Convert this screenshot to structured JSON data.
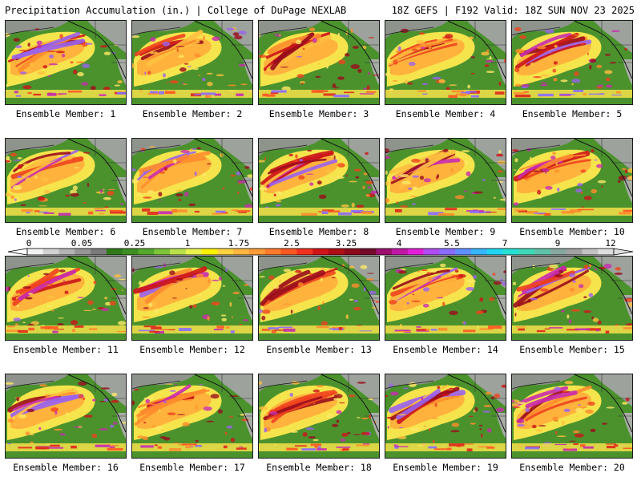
{
  "header": {
    "left": "Precipitation Accumulation (in.) | College of DuPage NEXLAB",
    "right": "18Z GEFS | F192 Valid: 18Z SUN NOV 23 2025"
  },
  "legend": {
    "labels": [
      "0",
      "0.05",
      "0.25",
      "1",
      "1.75",
      "2.5",
      "3.25",
      "4",
      "5.5",
      "7",
      "9",
      "12"
    ],
    "colors": [
      "#f2f2f2",
      "#d2d2d2",
      "#b4b4b4",
      "#969696",
      "#7a7a7a",
      "#2f7b1a",
      "#3e8f22",
      "#55a82c",
      "#7ec43a",
      "#b9e04c",
      "#eaf34d",
      "#fff200",
      "#ffd23f",
      "#ffb640",
      "#ff9b36",
      "#ff7a2a",
      "#ff5722",
      "#f2301e",
      "#d21418",
      "#b00c16",
      "#8c0a1a",
      "#730a2a",
      "#9c0f6e",
      "#c016a6",
      "#e21fd8",
      "#b24cf4",
      "#8a6cff",
      "#5f90ff",
      "#35b6ff",
      "#1fd6f2",
      "#26e0d2",
      "#3fd9b8",
      "#5fc3aa",
      "#86a8a0",
      "#a2a2a2",
      "#c2c2c2",
      "#dedede"
    ]
  },
  "ensemble": {
    "caption_prefix": "Ensemble Member:",
    "members": [
      {
        "number": "1"
      },
      {
        "number": "2"
      },
      {
        "number": "3"
      },
      {
        "number": "4"
      },
      {
        "number": "5"
      },
      {
        "number": "6"
      },
      {
        "number": "7"
      },
      {
        "number": "8"
      },
      {
        "number": "9"
      },
      {
        "number": "10"
      },
      {
        "number": "11"
      },
      {
        "number": "12"
      },
      {
        "number": "13"
      },
      {
        "number": "14"
      },
      {
        "number": "15"
      },
      {
        "number": "16"
      },
      {
        "number": "17"
      },
      {
        "number": "18"
      },
      {
        "number": "19"
      },
      {
        "number": "20"
      }
    ]
  }
}
